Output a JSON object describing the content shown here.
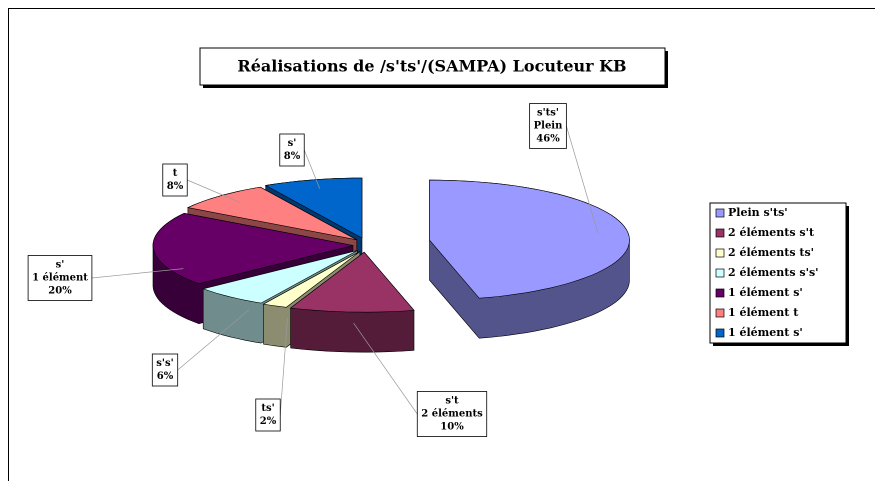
{
  "chart_data": {
    "type": "pie",
    "title": "Réalisations de /s'ts'/(SAMPA) Locuteur KB",
    "categories": [
      "Plein s'ts'",
      "2 éléments s't",
      "2 éléments ts'",
      "2 éléments s's'",
      "1 élément s'",
      "1 élément t",
      "1 élément s'"
    ],
    "values": [
      46,
      10,
      2,
      6,
      20,
      8,
      8
    ],
    "value_labels": [
      [
        "s'ts'",
        "Plein",
        "46%"
      ],
      [
        "s't",
        "2 éléments",
        "10%"
      ],
      [
        "ts'",
        "2%"
      ],
      [
        "s's'",
        "6%"
      ],
      [
        "s'",
        "1 élément",
        "20%"
      ],
      [
        "t",
        "8%"
      ],
      [
        "s'",
        "8%"
      ]
    ],
    "colors": [
      "#9999ff",
      "#993366",
      "#ffffcc",
      "#ccffff",
      "#660066",
      "#ff8080",
      "#0066cc"
    ],
    "legend": "right"
  }
}
